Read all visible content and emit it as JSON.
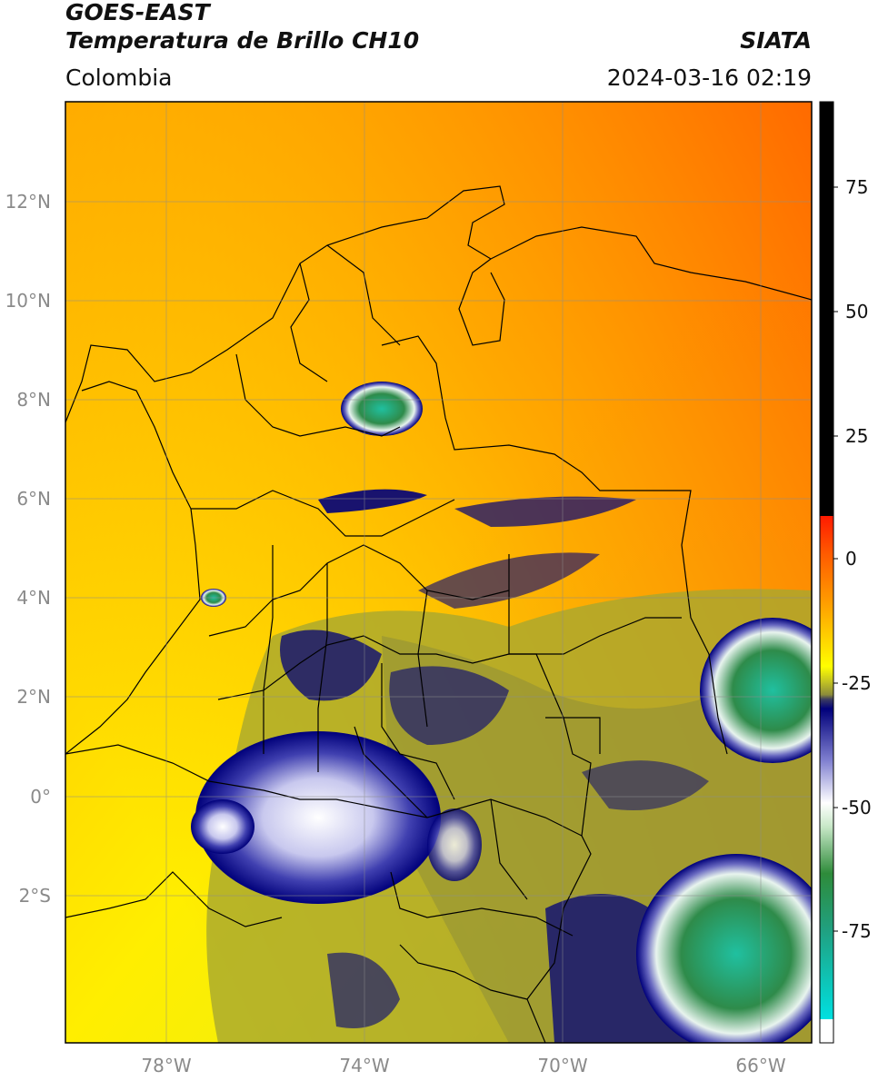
{
  "header": {
    "satellite": "GOES-EAST",
    "product": "Temperatura de Brillo CH10",
    "region": "Colombia",
    "agency": "SIATA",
    "datetime": "2024-03-16 02:19"
  },
  "axes": {
    "lat_labels": [
      "12°N",
      "10°N",
      "8°N",
      "6°N",
      "4°N",
      "2°N",
      "0°",
      "2°S"
    ],
    "lon_labels": [
      "78°W",
      "74°W",
      "70°W",
      "66°W"
    ]
  },
  "colorbar": {
    "ticks": [
      "75",
      "50",
      "25",
      "0",
      "-25",
      "-50",
      "-75"
    ],
    "colors": {
      "black": "#000000",
      "red": "#ff1a00",
      "orange": "#ff9a00",
      "yellow": "#ffff00",
      "olive": "#9b9b2a",
      "navy": "#00007a",
      "white": "#ffffff",
      "green": "#2e8b3a",
      "cyan": "#00e0e0"
    }
  }
}
